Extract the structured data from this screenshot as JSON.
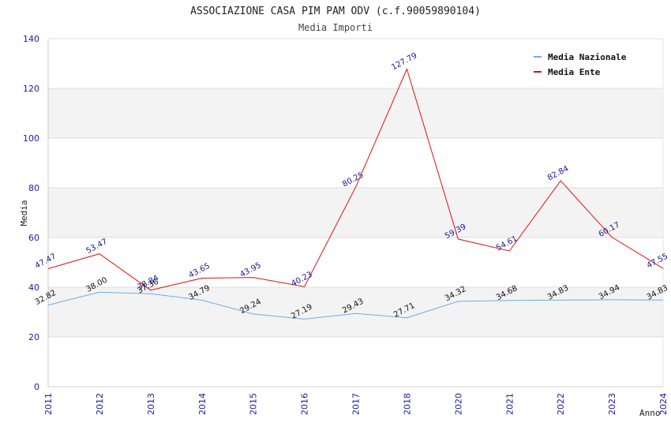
{
  "chart_data": {
    "type": "line",
    "title": "ASSOCIAZIONE CASA PIM PAM ODV (c.f.90059890104)",
    "subtitle": "Media Importi",
    "xlabel": "Anno",
    "ylabel": "Media",
    "ylim": [
      0,
      140
    ],
    "yticks": [
      0,
      20,
      40,
      60,
      80,
      100,
      120,
      140
    ],
    "grid": "horizontal bands",
    "legend_position": "top-right",
    "x": [
      "2011",
      "2012",
      "2013",
      "2014",
      "2015",
      "2016",
      "2017",
      "2018",
      "2020",
      "2021",
      "2022",
      "2023",
      "2024"
    ],
    "series": [
      {
        "name": "Media Nazionale",
        "color": "#6aaeea",
        "values": [
          32.82,
          38.0,
          37.36,
          34.79,
          29.24,
          27.19,
          29.43,
          27.71,
          34.32,
          34.68,
          34.83,
          34.94,
          34.83
        ],
        "labels": [
          "32.82",
          "38.00",
          "37.36",
          "34.79",
          "29.24",
          "27.19",
          "29.43",
          "27.71",
          "34.32",
          "34.68",
          "34.83",
          "34.94",
          "34.83"
        ]
      },
      {
        "name": "Media Ente",
        "color": "#e01010",
        "values": [
          47.47,
          53.47,
          38.84,
          43.65,
          43.95,
          40.23,
          80.25,
          127.79,
          59.39,
          54.61,
          82.84,
          60.17,
          47.55
        ],
        "labels": [
          "47.47",
          "53.47",
          "38.84",
          "43.65",
          "43.95",
          "40.23",
          "80.25",
          "127.79",
          "59.39",
          "54.61",
          "82.84",
          "60.17",
          "47.55"
        ]
      }
    ]
  }
}
